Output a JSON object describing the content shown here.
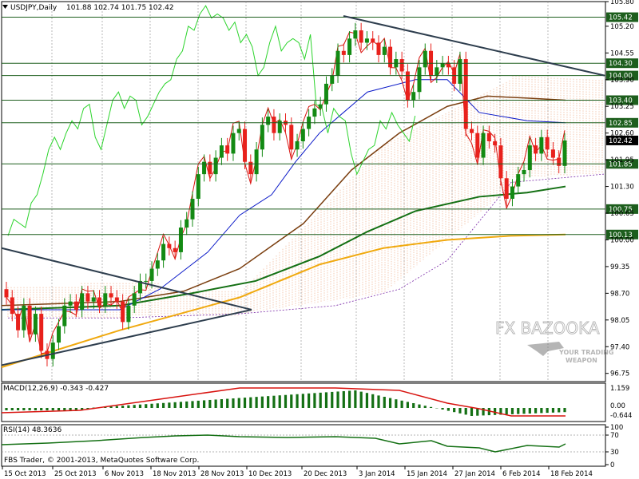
{
  "header": {
    "symbol": "USDJPY,Daily",
    "ohlc": "101.88 102.74 101.75 102.42",
    "arrow_icon": "down-triangle-icon"
  },
  "watermark": {
    "brand": "FX BAZOOKA",
    "tagline1": "YOUR TRADING",
    "tagline2": "WEAPON"
  },
  "footer": {
    "copyright": "FBS Trader, © 2001-2013, MetaQuotes Software Corp."
  },
  "colors": {
    "bull": "#138a13",
    "bear": "#e8211c",
    "ema_fast": "#d8130f",
    "kijun": "#0a19c8",
    "chikou": "#2cd42c",
    "ma_brown": "#7b3f10",
    "ma_green": "#147014",
    "ma_orange": "#f0a90f",
    "trend": "#2e3e4e",
    "level": "#1d5e1d",
    "cloud": "#e88f5f"
  },
  "chart_data": [
    {
      "type": "candlestick",
      "title": "USDJPY,Daily",
      "ylim": [
        96.55,
        105.8
      ],
      "y_ticks": [
        105.8,
        105.2,
        104.55,
        103.9,
        103.25,
        102.6,
        101.95,
        101.3,
        100.65,
        100.0,
        99.35,
        98.7,
        98.05,
        97.4,
        96.75
      ],
      "x_ticks": [
        "15 Oct 2013",
        "25 Oct 2013",
        "6 Nov 2013",
        "18 Nov 2013",
        "28 Nov 2013",
        "10 Dec 2013",
        "20 Dec 2013",
        "3 Jan 2014",
        "15 Jan 2014",
        "27 Jan 2014",
        "6 Feb 2014",
        "18 Feb 2014"
      ],
      "levels": [
        105.42,
        104.3,
        104.0,
        103.4,
        102.85,
        101.85,
        100.75,
        100.13
      ],
      "current": 102.42,
      "closes": [
        98.6,
        98.2,
        97.8,
        98.4,
        97.7,
        98.2,
        97.3,
        97.1,
        97.5,
        97.9,
        98.4,
        98.5,
        98.3,
        98.7,
        98.5,
        98.6,
        98.4,
        98.7,
        98.6,
        98.5,
        98.0,
        98.4,
        98.7,
        99.0,
        99.0,
        99.3,
        99.5,
        99.9,
        99.8,
        99.7,
        100.3,
        100.5,
        101.0,
        101.6,
        101.9,
        101.6,
        102.0,
        102.3,
        102.1,
        102.6,
        102.7,
        101.9,
        101.6,
        102.2,
        102.8,
        103.0,
        102.6,
        102.9,
        102.8,
        102.2,
        102.4,
        102.7,
        103.0,
        103.2,
        103.3,
        103.8,
        104.0,
        104.6,
        104.5,
        104.9,
        105.1,
        104.8,
        104.9,
        104.8,
        104.5,
        104.7,
        104.2,
        104.4,
        104.1,
        103.4,
        103.6,
        104.2,
        104.6,
        104.0,
        104.2,
        104.3,
        104.2,
        103.8,
        104.4,
        102.7,
        102.6,
        102.0,
        102.6,
        102.4,
        102.3,
        101.5,
        101.0,
        101.3,
        101.6,
        101.7,
        102.3,
        102.1,
        102.5,
        102.2,
        102.0,
        101.8,
        102.42
      ],
      "series": [
        {
          "name": "Chikou"
        },
        {
          "name": "EMA"
        },
        {
          "name": "Kijun"
        },
        {
          "name": "MA brown"
        },
        {
          "name": "MA green"
        },
        {
          "name": "MA orange"
        }
      ]
    },
    {
      "type": "bar",
      "title": "MACD(12,26,9) -0.343 -0.427",
      "y_ticks": [
        "1.159",
        "0.00",
        "-0.644"
      ]
    },
    {
      "type": "line",
      "title": "RSI(14) 48.3636",
      "y_ticks": [
        "100",
        "70",
        "30",
        "0"
      ]
    }
  ]
}
